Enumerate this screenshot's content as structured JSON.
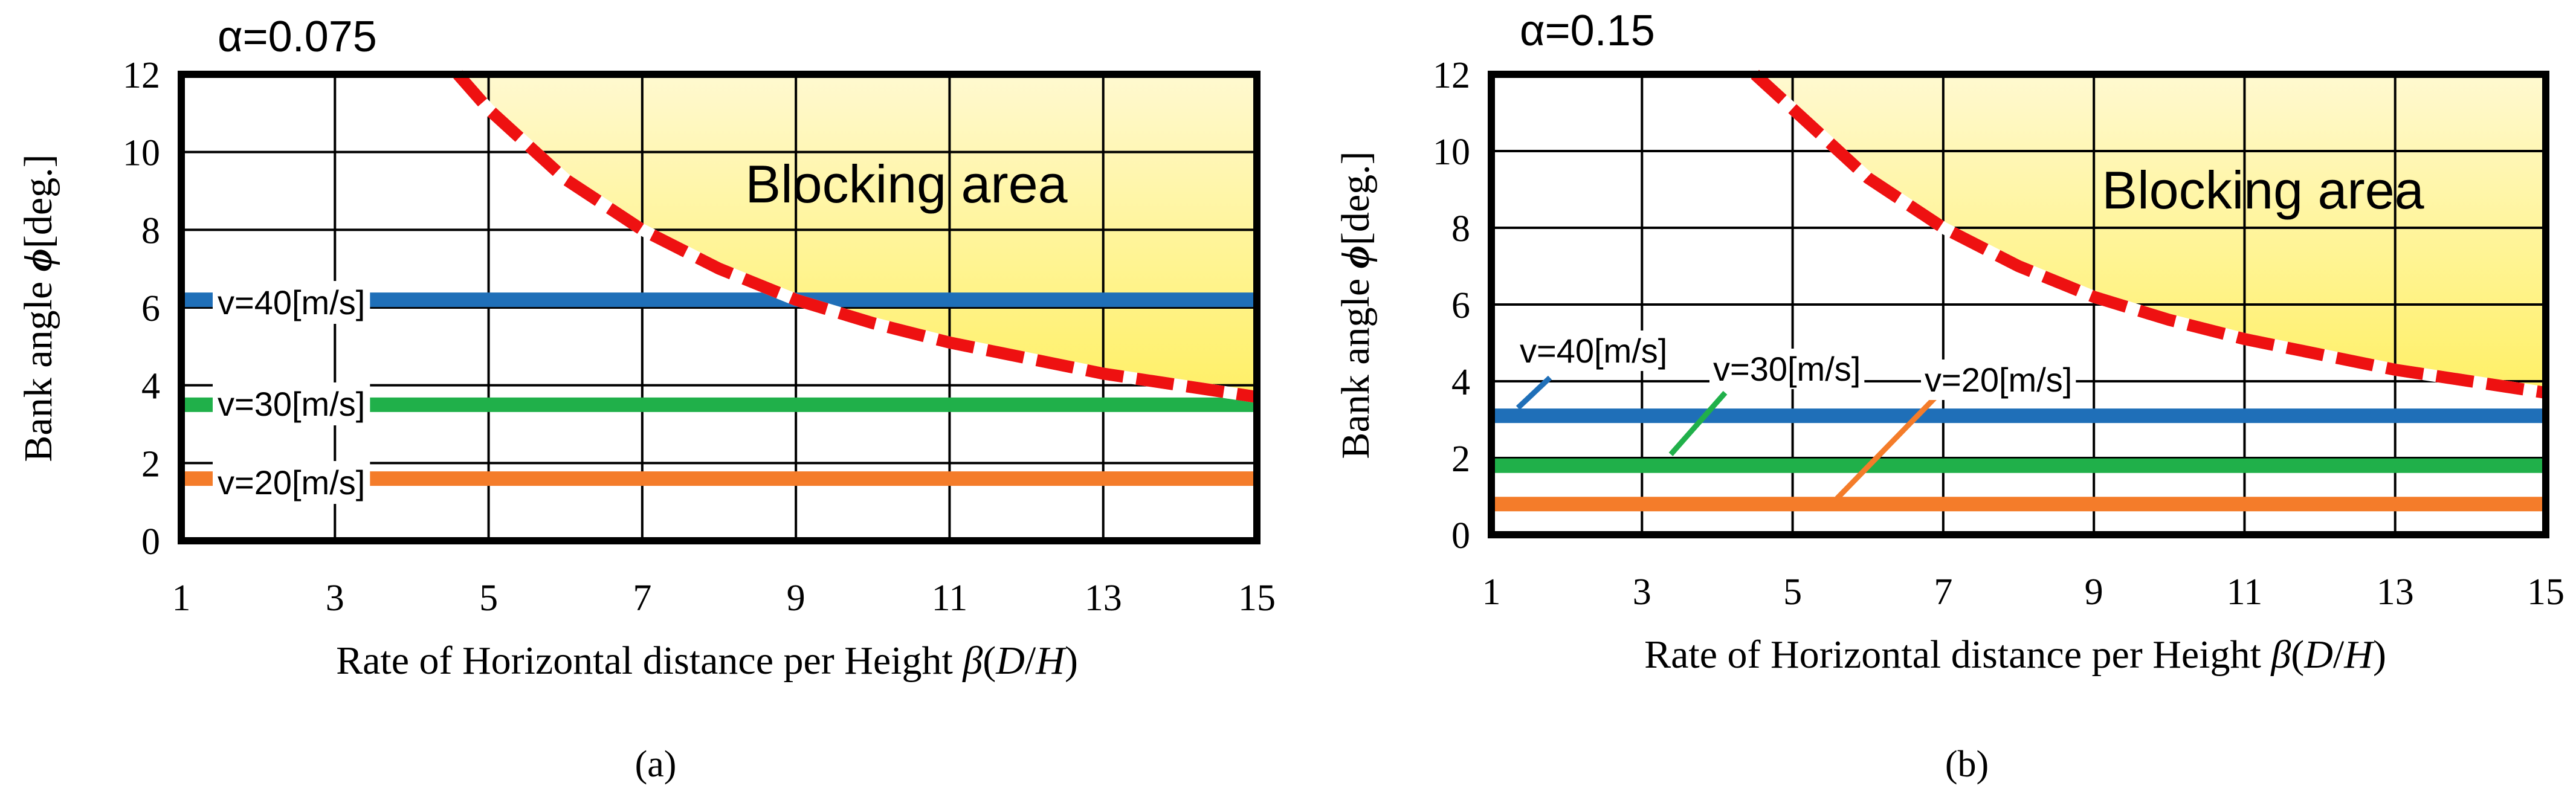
{
  "panels": [
    {
      "alpha_label": "α=0.075",
      "caption": "(a)",
      "blocking_label": "Blocking area",
      "series_labels": [
        "v=40[m/s]",
        "v=30[m/s]",
        "v=20[m/s]"
      ]
    },
    {
      "alpha_label": "α=0.15",
      "caption": "(b)",
      "blocking_label": "Blocking area",
      "series_labels": [
        "v=40[m/s]",
        "v=30[m/s]",
        "v=20[m/s]"
      ]
    }
  ],
  "colors": {
    "v40": "#1f6fb8",
    "v30": "#20b04a",
    "v20": "#f47c2a",
    "boundary": "#ee1111",
    "blocking_fill_top": "#fff9d0",
    "blocking_fill_bottom": "#fff066"
  },
  "chart_data": [
    {
      "type": "line",
      "title": "α=0.075",
      "xlabel": "Rate of Horizontal distance per Height β(D/H)",
      "ylabel": "Bank angle ϕ[deg.]",
      "xlim": [
        1,
        15
      ],
      "ylim": [
        0,
        12
      ],
      "xticks": [
        1,
        3,
        5,
        7,
        9,
        11,
        13,
        15
      ],
      "yticks": [
        0,
        2,
        4,
        6,
        8,
        10,
        12
      ],
      "grid": true,
      "series": [
        {
          "name": "v=40[m/s]",
          "x": [
            1,
            15
          ],
          "y": [
            6.2,
            6.2
          ]
        },
        {
          "name": "v=30[m/s]",
          "x": [
            1,
            15
          ],
          "y": [
            3.5,
            3.5
          ]
        },
        {
          "name": "v=20[m/s]",
          "x": [
            1,
            15
          ],
          "y": [
            1.6,
            1.6
          ]
        }
      ],
      "boundary": {
        "x": [
          4.6,
          5,
          6,
          7,
          8,
          9,
          10,
          11,
          12,
          13,
          14,
          15
        ],
        "y": [
          12,
          11.1,
          9.3,
          8.0,
          7.0,
          6.2,
          5.6,
          5.1,
          4.7,
          4.3,
          4.0,
          3.7
        ]
      },
      "annotations": [
        "Blocking area"
      ]
    },
    {
      "type": "line",
      "title": "α=0.15",
      "xlabel": "Rate of Horizontal distance per Height β(D/H)",
      "ylabel": "Bank angle ϕ[deg.]",
      "xlim": [
        1,
        15
      ],
      "ylim": [
        0,
        12
      ],
      "xticks": [
        1,
        3,
        5,
        7,
        9,
        11,
        13,
        15
      ],
      "yticks": [
        0,
        2,
        4,
        6,
        8,
        10,
        12
      ],
      "grid": true,
      "series": [
        {
          "name": "v=40[m/s]",
          "x": [
            1,
            15
          ],
          "y": [
            3.1,
            3.1
          ]
        },
        {
          "name": "v=30[m/s]",
          "x": [
            1,
            15
          ],
          "y": [
            1.8,
            1.8
          ]
        },
        {
          "name": "v=20[m/s]",
          "x": [
            1,
            15
          ],
          "y": [
            0.8,
            0.8
          ]
        }
      ],
      "boundary": {
        "x": [
          4.5,
          5,
          6,
          7,
          8,
          9,
          10,
          11,
          12,
          13,
          14,
          15
        ],
        "y": [
          12,
          11.1,
          9.3,
          8.0,
          7.0,
          6.2,
          5.6,
          5.1,
          4.7,
          4.3,
          4.0,
          3.7
        ]
      },
      "annotations": [
        "Blocking area"
      ]
    }
  ]
}
